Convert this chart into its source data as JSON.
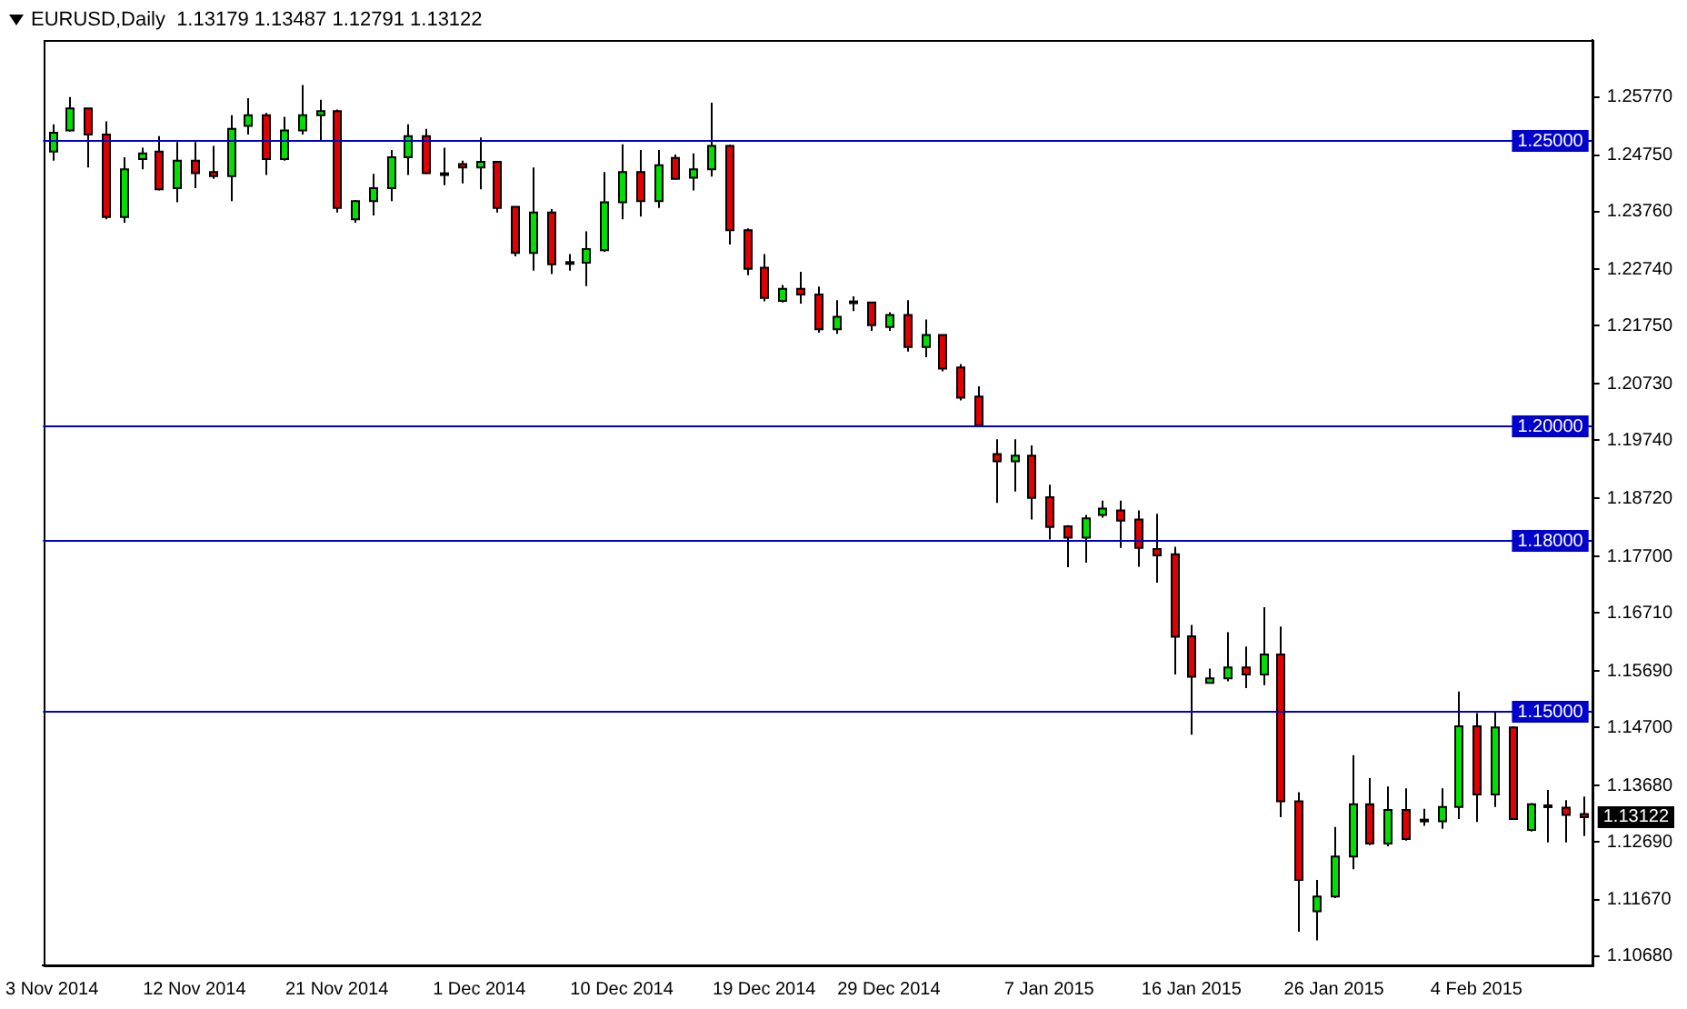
{
  "chart_data": {
    "type": "candlestick",
    "title": "EURUSD,Daily  1.13179 1.13487 1.12791 1.13122",
    "categories": [
      "3 Nov 2014",
      null,
      null,
      null,
      null,
      null,
      null,
      null,
      "12 Nov 2014",
      null,
      null,
      null,
      null,
      null,
      null,
      null,
      "21 Nov 2014",
      null,
      null,
      null,
      null,
      null,
      null,
      null,
      "1 Dec 2014",
      null,
      null,
      null,
      null,
      null,
      null,
      null,
      "10 Dec 2014",
      null,
      null,
      null,
      null,
      null,
      null,
      null,
      "19 Dec 2014",
      null,
      null,
      null,
      null,
      null,
      null,
      "29 Dec 2014",
      null,
      null,
      null,
      null,
      null,
      null,
      null,
      null,
      "7 Jan 2015",
      null,
      null,
      null,
      null,
      null,
      null,
      null,
      "16 Jan 2015",
      null,
      null,
      null,
      null,
      null,
      null,
      null,
      "26 Jan 2015",
      null,
      null,
      null,
      null,
      null,
      null,
      null,
      "4 Feb 2015",
      null,
      null,
      null,
      null,
      null,
      null
    ],
    "ohlc": [
      [
        1.2481,
        1.2529,
        1.2465,
        1.2514
      ],
      [
        1.2518,
        1.2577,
        1.2516,
        1.2557
      ],
      [
        1.2557,
        1.2557,
        1.2453,
        1.2511
      ],
      [
        1.2511,
        1.2534,
        1.2362,
        1.2366
      ],
      [
        1.2366,
        1.2471,
        1.2356,
        1.245
      ],
      [
        1.2468,
        1.2488,
        1.245,
        1.2478
      ],
      [
        1.2481,
        1.2508,
        1.2413,
        1.2415
      ],
      [
        1.2417,
        1.2498,
        1.2392,
        1.2465
      ],
      [
        1.2465,
        1.2498,
        1.2417,
        1.2443
      ],
      [
        1.2445,
        1.2491,
        1.2433,
        1.2438
      ],
      [
        1.2438,
        1.2545,
        1.2394,
        1.2521
      ],
      [
        1.2526,
        1.2575,
        1.2511,
        1.2545
      ],
      [
        1.2545,
        1.2549,
        1.244,
        1.2468
      ],
      [
        1.2468,
        1.2542,
        1.2465,
        1.2518
      ],
      [
        1.2518,
        1.2598,
        1.2511,
        1.2545
      ],
      [
        1.2545,
        1.2572,
        1.2499,
        1.2552
      ],
      [
        1.2552,
        1.2555,
        1.2374,
        1.2382
      ],
      [
        1.2362,
        1.2396,
        1.2356,
        1.2394
      ],
      [
        1.2394,
        1.2442,
        1.2369,
        1.2417
      ],
      [
        1.2417,
        1.2484,
        1.2394,
        1.2471
      ],
      [
        1.2471,
        1.2529,
        1.244,
        1.2508
      ],
      [
        1.2508,
        1.2521,
        1.2442,
        1.2443
      ],
      [
        1.2443,
        1.2488,
        1.2422,
        1.2442
      ],
      [
        1.2459,
        1.2465,
        1.2425,
        1.2453
      ],
      [
        1.2453,
        1.2506,
        1.2415,
        1.2463
      ],
      [
        1.2463,
        1.2464,
        1.2374,
        1.2382
      ],
      [
        1.2384,
        1.2385,
        1.2297,
        1.2303
      ],
      [
        1.2303,
        1.2453,
        1.2272,
        1.2374
      ],
      [
        1.2374,
        1.238,
        1.2266,
        1.2283
      ],
      [
        1.2286,
        1.2301,
        1.2272,
        1.2287
      ],
      [
        1.2286,
        1.2341,
        1.2245,
        1.231
      ],
      [
        1.2308,
        1.2445,
        1.2305,
        1.2392
      ],
      [
        1.2392,
        1.2494,
        1.2362,
        1.2445
      ],
      [
        1.2445,
        1.2484,
        1.2367,
        1.2394
      ],
      [
        1.2394,
        1.2484,
        1.2382,
        1.2457
      ],
      [
        1.247,
        1.2476,
        1.2432,
        1.2433
      ],
      [
        1.2435,
        1.2478,
        1.2413,
        1.245
      ],
      [
        1.245,
        1.2567,
        1.2437,
        1.2491
      ],
      [
        1.2491,
        1.2493,
        1.2318,
        1.2343
      ],
      [
        1.2343,
        1.2346,
        1.2264,
        1.2275
      ],
      [
        1.2277,
        1.2301,
        1.2218,
        1.2224
      ],
      [
        1.2219,
        1.2247,
        1.2216,
        1.224
      ],
      [
        1.224,
        1.227,
        1.2214,
        1.223
      ],
      [
        1.223,
        1.2244,
        1.2163,
        1.2169
      ],
      [
        1.2169,
        1.222,
        1.2161,
        1.2191
      ],
      [
        1.2217,
        1.2227,
        1.2201,
        1.2218
      ],
      [
        1.2216,
        1.2217,
        1.2166,
        1.2176
      ],
      [
        1.2173,
        1.2199,
        1.2166,
        1.2194
      ],
      [
        1.2194,
        1.222,
        1.213,
        1.2138
      ],
      [
        1.2138,
        1.2186,
        1.212,
        1.2159
      ],
      [
        1.2159,
        1.216,
        1.2095,
        1.21
      ],
      [
        1.2102,
        1.2108,
        1.2044,
        1.2049
      ],
      [
        1.2051,
        1.2069,
        1.1998,
        1.2
      ],
      [
        1.195,
        1.1976,
        1.1864,
        1.1937
      ],
      [
        1.1937,
        1.1976,
        1.1884,
        1.1947
      ],
      [
        1.1947,
        1.1965,
        1.1835,
        1.1873
      ],
      [
        1.1874,
        1.1896,
        1.18,
        1.1822
      ],
      [
        1.1823,
        1.1825,
        1.1751,
        1.1803
      ],
      [
        1.1803,
        1.1843,
        1.1759,
        1.1837
      ],
      [
        1.1843,
        1.1868,
        1.1838,
        1.1854
      ],
      [
        1.1851,
        1.1868,
        1.1785,
        1.1833
      ],
      [
        1.1835,
        1.1851,
        1.1752,
        1.1785
      ],
      [
        1.1783,
        1.1845,
        1.1724,
        1.1772
      ],
      [
        1.1774,
        1.1787,
        1.1563,
        1.1629
      ],
      [
        1.163,
        1.165,
        1.1457,
        1.1559
      ],
      [
        1.1548,
        1.1573,
        1.1547,
        1.1556
      ],
      [
        1.1556,
        1.1637,
        1.1551,
        1.1575
      ],
      [
        1.1575,
        1.1612,
        1.1539,
        1.1563
      ],
      [
        1.1563,
        1.1681,
        1.1544,
        1.1598
      ],
      [
        1.1598,
        1.1647,
        1.1312,
        1.134
      ],
      [
        1.134,
        1.1356,
        1.1111,
        1.1202
      ],
      [
        1.1147,
        1.1202,
        1.1096,
        1.1173
      ],
      [
        1.1173,
        1.1295,
        1.117,
        1.1243
      ],
      [
        1.1243,
        1.1421,
        1.1221,
        1.1335
      ],
      [
        1.1335,
        1.1381,
        1.1263,
        1.1266
      ],
      [
        1.1266,
        1.1366,
        1.1261,
        1.1325
      ],
      [
        1.1325,
        1.1363,
        1.1271,
        1.1274
      ],
      [
        1.1307,
        1.1327,
        1.1297,
        1.1308
      ],
      [
        1.1305,
        1.1363,
        1.1292,
        1.133
      ],
      [
        1.133,
        1.1533,
        1.1309,
        1.1472
      ],
      [
        1.1472,
        1.1495,
        1.1304,
        1.1352
      ],
      [
        1.1352,
        1.1498,
        1.133,
        1.147
      ],
      [
        1.147,
        1.1472,
        1.1308,
        1.1309
      ],
      [
        1.129,
        1.1337,
        1.1287,
        1.1335
      ],
      [
        1.1332,
        1.136,
        1.1268,
        1.1333
      ],
      [
        1.1329,
        1.1342,
        1.1268,
        1.1316
      ],
      [
        1.13179,
        1.13487,
        1.12791,
        1.13122
      ]
    ],
    "ylim": [
      1.1052,
      1.2677
    ],
    "yticks": [
      {
        "value": 1.2577,
        "label": "1.25770"
      },
      {
        "value": 1.2475,
        "label": "1.24750"
      },
      {
        "value": 1.2376,
        "label": "1.23760"
      },
      {
        "value": 1.2274,
        "label": "1.22740"
      },
      {
        "value": 1.2175,
        "label": "1.21750"
      },
      {
        "value": 1.2073,
        "label": "1.20730"
      },
      {
        "value": 1.1974,
        "label": "1.19740"
      },
      {
        "value": 1.1872,
        "label": "1.18720"
      },
      {
        "value": 1.177,
        "label": "1.17700"
      },
      {
        "value": 1.1671,
        "label": "1.16710"
      },
      {
        "value": 1.1569,
        "label": "1.15690"
      },
      {
        "value": 1.147,
        "label": "1.14700"
      },
      {
        "value": 1.1368,
        "label": "1.13680"
      },
      {
        "value": 1.1269,
        "label": "1.12690"
      },
      {
        "value": 1.1167,
        "label": "1.11670"
      },
      {
        "value": 1.1068,
        "label": "1.10680"
      }
    ],
    "ref_lines": [
      {
        "axis": "y",
        "value": 1.25,
        "label": "1.25000",
        "color": "#0000cc"
      },
      {
        "axis": "y",
        "value": 1.2,
        "label": "1.20000",
        "color": "#0000cc"
      },
      {
        "axis": "y",
        "value": 1.18,
        "label": "1.18000",
        "color": "#0000cc"
      },
      {
        "axis": "y",
        "value": 1.15,
        "label": "1.15000",
        "color": "#0000cc"
      }
    ],
    "annotations": [
      "1.13122"
    ],
    "grid": false,
    "legend": false
  }
}
